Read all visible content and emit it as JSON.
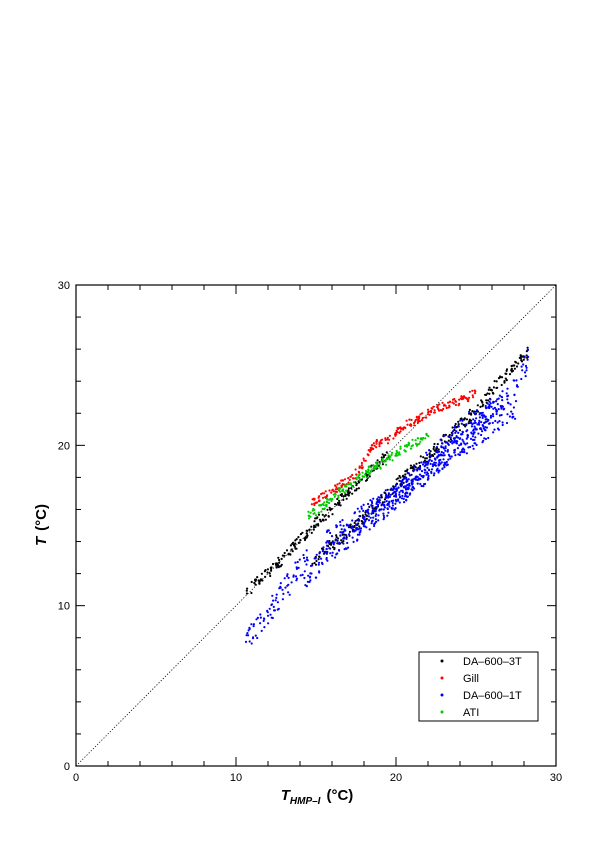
{
  "chart_data": {
    "type": "scatter",
    "title": "",
    "xlabel": {
      "main": "T",
      "subscript": "HMP–I",
      "unit": "(°C)"
    },
    "ylabel": {
      "main": "T",
      "unit": "(°C)"
    },
    "xlim": [
      0,
      30
    ],
    "ylim": [
      0,
      30
    ],
    "x_ticks": [
      "0",
      "10",
      "20",
      "30"
    ],
    "y_ticks": [
      "0",
      "10",
      "20",
      "30"
    ],
    "reference_line": {
      "type": "1:1",
      "style": "dotted"
    },
    "grid": false,
    "legend_position": "bottom-right",
    "series": [
      {
        "name": "DA–600–3T",
        "color": "#000000",
        "segments": [
          {
            "x": [
              10.7,
              13.0,
              15.0,
              17.0,
              18.5,
              19.5
            ],
            "y": [
              10.9,
              13.0,
              15.1,
              17.0,
              18.5,
              19.4
            ]
          },
          {
            "x": [
              14.8,
              16.0,
              17.5,
              18.5,
              19.5,
              20.5,
              21.5,
              22.5,
              23.5,
              24.5,
              25.5,
              26.5,
              27.5,
              28.3
            ],
            "y": [
              12.6,
              13.8,
              15.0,
              16.0,
              17.0,
              18.0,
              19.0,
              19.8,
              20.8,
              21.7,
              22.8,
              24.0,
              25.0,
              25.9
            ]
          }
        ],
        "spread": 0.35
      },
      {
        "name": "Gill",
        "color": "#ff0000",
        "segments": [
          {
            "x": [
              14.7,
              15.5,
              16.5,
              17.5,
              18.0,
              18.5,
              19.5,
              20.5,
              21.5,
              22.5,
              23.5,
              24.5,
              25.0
            ],
            "y": [
              16.4,
              16.8,
              17.5,
              18.2,
              19.0,
              20.0,
              20.3,
              21.2,
              21.7,
              22.3,
              22.6,
              23.0,
              23.3
            ]
          }
        ],
        "spread": 0.25
      },
      {
        "name": "DA–600–1T",
        "color": "#0000ff",
        "segments": [
          {
            "x": [
              10.6,
              11.5,
              12.5,
              13.5,
              14.5
            ],
            "y": [
              7.7,
              8.9,
              10.2,
              11.7,
              13.0
            ]
          },
          {
            "x": [
              14.2,
              15.5,
              17.0,
              18.5,
              20.0,
              21.5,
              23.0,
              24.5,
              26.0,
              27.5,
              28.3
            ],
            "y": [
              11.5,
              13.0,
              14.3,
              15.5,
              16.8,
              18.0,
              19.3,
              20.5,
              22.0,
              23.8,
              25.4
            ]
          },
          {
            "x": [
              15.5,
              17.0,
              18.5,
              20.0,
              21.5,
              23.0,
              24.5,
              26.0,
              27.5
            ],
            "y": [
              13.8,
              15.0,
              16.0,
              17.0,
              18.0,
              19.2,
              20.2,
              21.3,
              22.3
            ]
          },
          {
            "x": [
              18.5,
              20.0,
              21.5,
              23.0,
              24.5,
              26.0
            ],
            "y": [
              15.5,
              16.8,
              18.5,
              20.0,
              21.3,
              22.3
            ]
          }
        ],
        "spread": 0.7
      },
      {
        "name": "ATI",
        "color": "#00cc00",
        "segments": [
          {
            "x": [
              14.5,
              15.5,
              16.5,
              17.5,
              18.5,
              19.5,
              20.5,
              21.5,
              22.0
            ],
            "y": [
              15.6,
              16.2,
              17.1,
              17.8,
              18.5,
              19.1,
              19.8,
              20.3,
              20.7
            ]
          }
        ],
        "spread": 0.25
      }
    ]
  }
}
